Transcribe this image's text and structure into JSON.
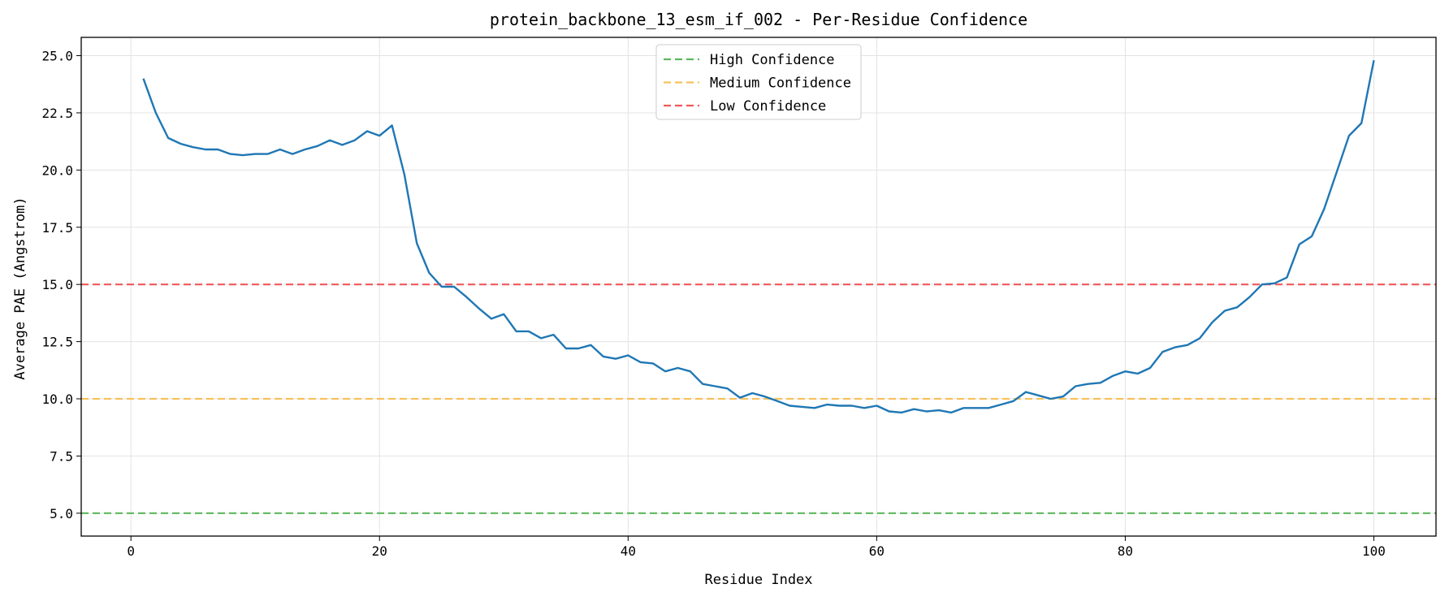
{
  "chart_data": {
    "type": "line",
    "title": "protein_backbone_13_esm_if_002 - Per-Residue Confidence",
    "xlabel": "Residue Index",
    "ylabel": "Average PAE (Angstrom)",
    "xlim": [
      -4,
      105
    ],
    "ylim": [
      4.0,
      25.8
    ],
    "xticks": [
      0,
      20,
      40,
      60,
      80,
      100
    ],
    "yticks": [
      5.0,
      7.5,
      10.0,
      12.5,
      15.0,
      17.5,
      20.0,
      22.5,
      25.0
    ],
    "xtick_labels": [
      "0",
      "20",
      "40",
      "60",
      "80",
      "100"
    ],
    "ytick_labels": [
      "5.0",
      "7.5",
      "10.0",
      "12.5",
      "15.0",
      "17.5",
      "20.0",
      "22.5",
      "25.0"
    ],
    "grid": true,
    "legend_position": "upper-center",
    "series": [
      {
        "color": "#1f77b4",
        "x": [
          1,
          2,
          3,
          4,
          5,
          6,
          7,
          8,
          9,
          10,
          11,
          12,
          13,
          14,
          15,
          16,
          17,
          18,
          19,
          20,
          21,
          22,
          23,
          24,
          25,
          26,
          27,
          28,
          29,
          30,
          31,
          32,
          33,
          34,
          35,
          36,
          37,
          38,
          39,
          40,
          41,
          42,
          43,
          44,
          45,
          46,
          47,
          48,
          49,
          50,
          51,
          52,
          53,
          54,
          55,
          56,
          57,
          58,
          59,
          60,
          61,
          62,
          63,
          64,
          65,
          66,
          67,
          68,
          69,
          70,
          71,
          72,
          73,
          74,
          75,
          76,
          77,
          78,
          79,
          80,
          81,
          82,
          83,
          84,
          85,
          86,
          87,
          88,
          89,
          90,
          91,
          92,
          93,
          94,
          95,
          96,
          97,
          98,
          99,
          100
        ],
        "y": [
          24.0,
          22.5,
          21.4,
          21.15,
          21.0,
          20.9,
          20.9,
          20.7,
          20.65,
          20.7,
          20.7,
          20.9,
          20.7,
          20.9,
          21.05,
          21.3,
          21.1,
          21.3,
          21.7,
          21.5,
          21.95,
          19.8,
          16.8,
          15.5,
          14.9,
          14.9,
          14.45,
          13.95,
          13.5,
          13.7,
          12.95,
          12.95,
          12.65,
          12.8,
          12.2,
          12.2,
          12.35,
          11.85,
          11.75,
          11.9,
          11.6,
          11.55,
          11.2,
          11.35,
          11.2,
          10.65,
          10.55,
          10.45,
          10.05,
          10.25,
          10.1,
          9.9,
          9.7,
          9.65,
          9.6,
          9.75,
          9.7,
          9.7,
          9.6,
          9.7,
          9.45,
          9.4,
          9.55,
          9.45,
          9.5,
          9.4,
          9.6,
          9.6,
          9.6,
          9.75,
          9.9,
          10.3,
          10.15,
          10.0,
          10.1,
          10.55,
          10.65,
          10.7,
          11.0,
          11.2,
          11.1,
          11.35,
          12.05,
          12.25,
          12.35,
          12.65,
          13.35,
          13.85,
          14.0,
          14.45,
          15.0,
          15.05,
          15.3,
          16.75,
          17.1,
          18.3,
          19.9,
          21.5,
          22.05,
          24.8
        ]
      }
    ],
    "reference_lines": [
      {
        "name": "High Confidence",
        "y": 5.0,
        "color": "#5cb85c"
      },
      {
        "name": "Medium Confidence",
        "y": 10.0,
        "color": "#f7c15e"
      },
      {
        "name": "Low Confidence",
        "y": 15.0,
        "color": "#f0585a"
      }
    ]
  }
}
